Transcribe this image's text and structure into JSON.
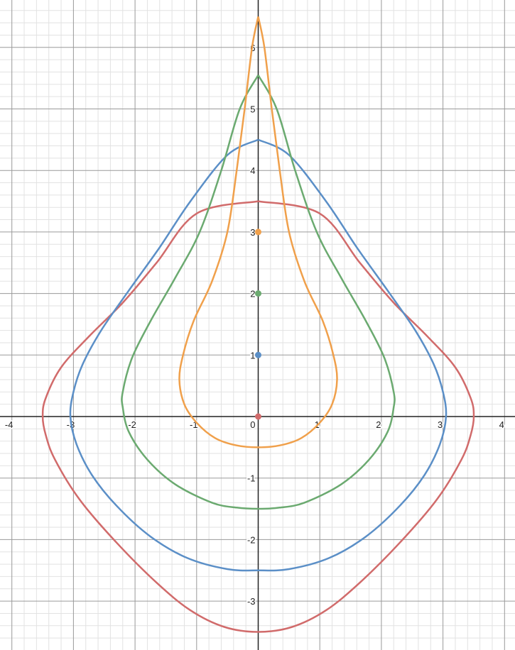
{
  "chart_data": {
    "type": "line",
    "title": "",
    "xlabel": "",
    "ylabel": "",
    "xlim": [
      -4.2,
      4.2
    ],
    "ylim": [
      -3.75,
      6.8
    ],
    "grid": true,
    "x_ticks": [
      "-4",
      "-3",
      "-2",
      "-1",
      "0",
      "1",
      "2",
      "3",
      "4"
    ],
    "y_ticks": [
      "6",
      "5",
      "4",
      "3",
      "2",
      "1",
      "-1",
      "-2",
      "-3"
    ],
    "origin_label": "0",
    "series": [
      {
        "color": "#d16b6b",
        "points": [
          [
            0,
            3.5
          ],
          [
            1.0,
            3.3
          ],
          [
            1.65,
            2.5
          ],
          [
            2.2,
            1.85
          ],
          [
            2.75,
            1.3
          ],
          [
            3.2,
            0.8
          ],
          [
            3.45,
            0.3
          ],
          [
            3.5,
            0.0
          ],
          [
            3.45,
            -0.3
          ],
          [
            3.3,
            -0.7
          ],
          [
            2.9,
            -1.35
          ],
          [
            2.3,
            -2.05
          ],
          [
            1.65,
            -2.7
          ],
          [
            1.1,
            -3.15
          ],
          [
            0.55,
            -3.42
          ],
          [
            0,
            -3.5
          ],
          [
            -0.55,
            -3.42
          ],
          [
            -1.1,
            -3.15
          ],
          [
            -1.65,
            -2.7
          ],
          [
            -2.3,
            -2.05
          ],
          [
            -2.9,
            -1.35
          ],
          [
            -3.3,
            -0.7
          ],
          [
            -3.45,
            -0.3
          ],
          [
            -3.5,
            0.0
          ],
          [
            -3.45,
            0.3
          ],
          [
            -3.2,
            0.8
          ],
          [
            -2.75,
            1.3
          ],
          [
            -2.2,
            1.85
          ],
          [
            -1.65,
            2.5
          ],
          [
            -1.0,
            3.3
          ],
          [
            0,
            3.5
          ]
        ],
        "marker": [
          0,
          0
        ]
      },
      {
        "color": "#5b8fc7",
        "points": [
          [
            0,
            4.5
          ],
          [
            0.5,
            4.25
          ],
          [
            1.1,
            3.5
          ],
          [
            1.6,
            2.75
          ],
          [
            2.1,
            2.05
          ],
          [
            2.55,
            1.4
          ],
          [
            2.85,
            0.85
          ],
          [
            3.0,
            0.4
          ],
          [
            3.05,
            0.0
          ],
          [
            2.95,
            -0.45
          ],
          [
            2.7,
            -0.95
          ],
          [
            2.3,
            -1.45
          ],
          [
            1.75,
            -1.95
          ],
          [
            1.15,
            -2.3
          ],
          [
            0.5,
            -2.48
          ],
          [
            0,
            -2.5
          ],
          [
            -0.5,
            -2.48
          ],
          [
            -1.15,
            -2.3
          ],
          [
            -1.75,
            -1.95
          ],
          [
            -2.3,
            -1.45
          ],
          [
            -2.7,
            -0.95
          ],
          [
            -2.95,
            -0.45
          ],
          [
            -3.05,
            0.0
          ],
          [
            -3.0,
            0.4
          ],
          [
            -2.85,
            0.85
          ],
          [
            -2.55,
            1.4
          ],
          [
            -2.1,
            2.05
          ],
          [
            -1.6,
            2.75
          ],
          [
            -1.1,
            3.5
          ],
          [
            -0.5,
            4.25
          ],
          [
            0,
            4.5
          ]
        ],
        "marker": [
          0,
          1
        ]
      },
      {
        "color": "#6baa70",
        "points": [
          [
            0,
            5.55
          ],
          [
            0.3,
            5.0
          ],
          [
            0.6,
            4.0
          ],
          [
            0.95,
            3.0
          ],
          [
            1.35,
            2.25
          ],
          [
            1.75,
            1.55
          ],
          [
            2.05,
            0.95
          ],
          [
            2.2,
            0.4
          ],
          [
            2.2,
            0.15
          ],
          [
            2.1,
            -0.25
          ],
          [
            1.8,
            -0.7
          ],
          [
            1.35,
            -1.1
          ],
          [
            0.75,
            -1.4
          ],
          [
            0.35,
            -1.48
          ],
          [
            0,
            -1.5
          ],
          [
            -0.35,
            -1.48
          ],
          [
            -0.75,
            -1.4
          ],
          [
            -1.35,
            -1.1
          ],
          [
            -1.8,
            -0.7
          ],
          [
            -2.1,
            -0.25
          ],
          [
            -2.2,
            0.15
          ],
          [
            -2.2,
            0.4
          ],
          [
            -2.05,
            0.95
          ],
          [
            -1.75,
            1.55
          ],
          [
            -1.35,
            2.25
          ],
          [
            -0.95,
            3.0
          ],
          [
            -0.6,
            4.0
          ],
          [
            -0.3,
            5.0
          ],
          [
            0,
            5.55
          ]
        ],
        "marker": [
          0,
          2
        ]
      },
      {
        "color": "#f0a04b",
        "points": [
          [
            0,
            6.5
          ],
          [
            0.1,
            6.0
          ],
          [
            0.22,
            5.0
          ],
          [
            0.35,
            4.0
          ],
          [
            0.5,
            3.0
          ],
          [
            0.75,
            2.2
          ],
          [
            1.05,
            1.55
          ],
          [
            1.22,
            1.0
          ],
          [
            1.28,
            0.6
          ],
          [
            1.2,
            0.2
          ],
          [
            1.0,
            -0.1
          ],
          [
            0.7,
            -0.35
          ],
          [
            0.35,
            -0.47
          ],
          [
            0,
            -0.5
          ],
          [
            -0.35,
            -0.47
          ],
          [
            -0.7,
            -0.35
          ],
          [
            -1.0,
            -0.1
          ],
          [
            -1.2,
            0.2
          ],
          [
            -1.28,
            0.6
          ],
          [
            -1.22,
            1.0
          ],
          [
            -1.05,
            1.55
          ],
          [
            -0.75,
            2.2
          ],
          [
            -0.5,
            3.0
          ],
          [
            -0.35,
            4.0
          ],
          [
            -0.22,
            5.0
          ],
          [
            -0.1,
            6.0
          ],
          [
            0,
            6.5
          ]
        ],
        "marker": [
          0,
          3
        ]
      }
    ]
  }
}
